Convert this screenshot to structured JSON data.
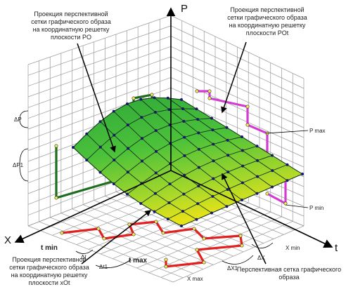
{
  "axes": {
    "p": "P",
    "x": "X",
    "t": "t"
  },
  "annotations": {
    "po_proj": [
      "Проекция перспективной",
      "сетки графического образа",
      "на координатную решетку",
      "плоскости PO"
    ],
    "pot_proj": [
      "Проекция перспективной",
      "сетки графического образа",
      "на координатную решетку",
      "плоскости POt"
    ],
    "xot_proj": [
      "Проекция перспективной",
      "сетки графического образа",
      "на координатную решетку",
      "плоскости xOt"
    ],
    "surface": [
      "Перспективная сетка графического",
      "образа"
    ]
  },
  "ticks": {
    "p_max": "P max",
    "p_min": "P min",
    "t_min": "t min",
    "t_max": "t max",
    "x_min": "X min",
    "x_max": "X max",
    "dp": "ΔP",
    "dp1": "ΔP1",
    "dt": "Δt",
    "dt1": "Δt1",
    "dx": "ΔX",
    "dx1": "ΔX1"
  },
  "colors": {
    "grid": "#9a9a9a",
    "po_projection": "#1f6e1f",
    "pot_projection": "#d23cd2",
    "xot_projection": "#e22020",
    "surface_high": "#3dbf3a",
    "surface_low": "#d8e21a",
    "node": "#f5e85a",
    "node_dark": "#1a1a6a"
  }
}
